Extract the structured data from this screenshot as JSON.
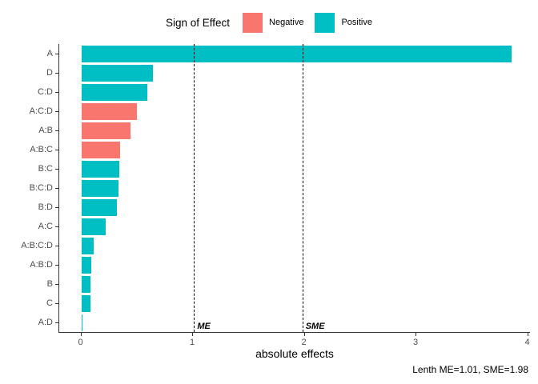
{
  "legend": {
    "title": "Sign of Effect",
    "items": [
      {
        "label": "Negative",
        "color": "#F8766D"
      },
      {
        "label": "Positive",
        "color": "#00BFC4"
      }
    ]
  },
  "chart_data": {
    "type": "bar",
    "orientation": "horizontal",
    "title": "",
    "xlabel": "absolute effects",
    "ylabel": "",
    "xlim": [
      0,
      4
    ],
    "xticks": [
      0,
      1,
      2,
      3,
      4
    ],
    "grid": false,
    "legend_position": "top",
    "categories": [
      "A",
      "D",
      "C:D",
      "A:C:D",
      "A:B",
      "A:B:C",
      "B:C",
      "B:C:D",
      "B:D",
      "A:C",
      "A:B:C:D",
      "A:B:D",
      "B",
      "C",
      "A:D"
    ],
    "values": [
      3.85,
      0.64,
      0.59,
      0.5,
      0.44,
      0.35,
      0.34,
      0.33,
      0.32,
      0.22,
      0.11,
      0.09,
      0.08,
      0.08,
      0.01
    ],
    "signs": [
      "Positive",
      "Positive",
      "Positive",
      "Negative",
      "Negative",
      "Negative",
      "Positive",
      "Positive",
      "Positive",
      "Positive",
      "Positive",
      "Positive",
      "Positive",
      "Positive",
      "Positive"
    ],
    "colors": {
      "Negative": "#F8766D",
      "Positive": "#00BFC4"
    },
    "reference_lines": [
      {
        "label": "ME",
        "value": 1.01
      },
      {
        "label": "SME",
        "value": 1.98
      }
    ],
    "caption": "Lenth ME=1.01, SME=1.98"
  }
}
